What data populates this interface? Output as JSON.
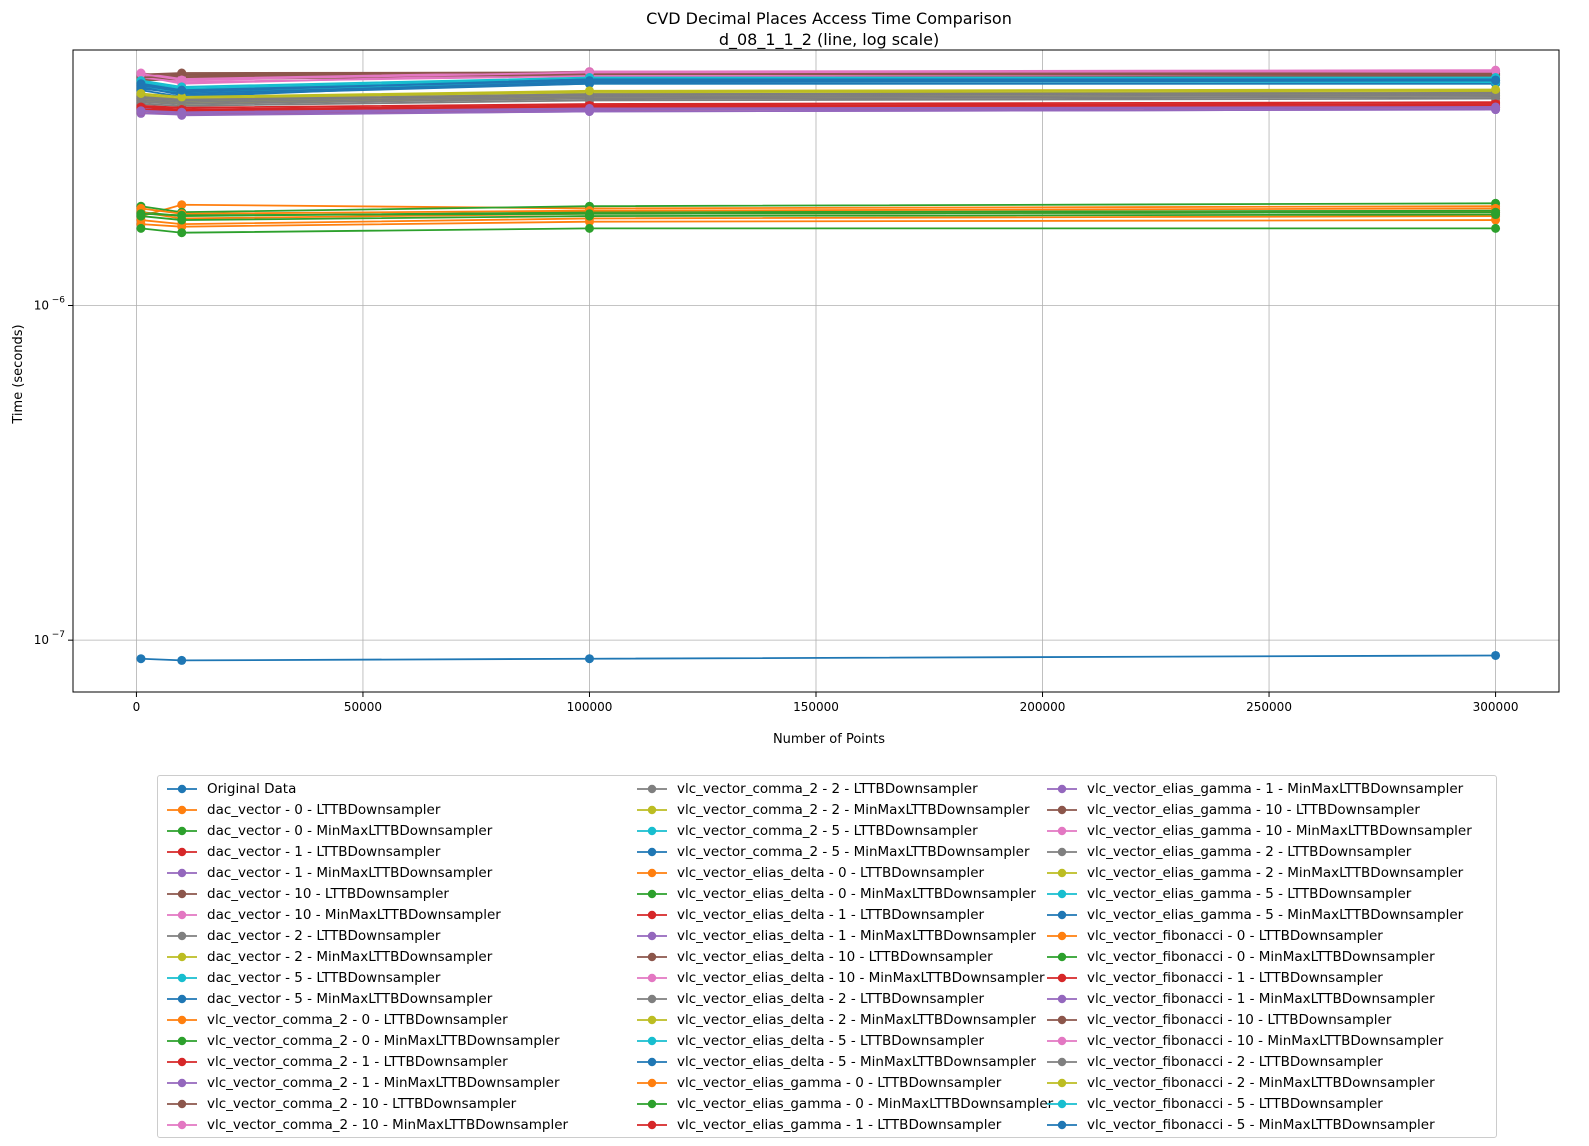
{
  "chart_data": {
    "type": "line",
    "title": "CVD Decimal Places Access Time Comparison",
    "subtitle": "d_08_1_1_2 (line, log scale)",
    "xlabel": "Number of Points",
    "ylabel": "Time (seconds)",
    "xlim": [
      -14000,
      314000
    ],
    "ylim": [
      7e-08,
      5.8e-06
    ],
    "yscale": "log",
    "grid": true,
    "legend_placement": "below",
    "x_ticks": [
      {
        "value": 0,
        "label": "0"
      },
      {
        "value": 50000,
        "label": "50000"
      },
      {
        "value": 100000,
        "label": "100000"
      },
      {
        "value": 150000,
        "label": "150000"
      },
      {
        "value": 200000,
        "label": "200000"
      },
      {
        "value": 250000,
        "label": "250000"
      },
      {
        "value": 300000,
        "label": "300000"
      }
    ],
    "y_ticks": [
      {
        "value": 1e-07,
        "base": "10",
        "exp": "−7"
      },
      {
        "value": 1e-06,
        "base": "10",
        "exp": "−6"
      }
    ],
    "x": [
      1000,
      10000,
      100000,
      300000
    ],
    "series": [
      {
        "name": "Original Data",
        "color": "#1f77b4",
        "values": [
          8.8e-08,
          8.7e-08,
          8.8e-08,
          9e-08
        ]
      },
      {
        "name": "dac_vector - 0 - LTTBDownsampler",
        "color": "#ff7f0e",
        "values": [
          1.85e-06,
          2e-06,
          1.95e-06,
          1.98e-06
        ]
      },
      {
        "name": "dac_vector - 0 - MinMaxLTTBDownsampler",
        "color": "#2ca02c",
        "values": [
          1.98e-06,
          1.9e-06,
          1.98e-06,
          2.02e-06
        ]
      },
      {
        "name": "dac_vector - 1 - LTTBDownsampler",
        "color": "#d62728",
        "values": [
          3.9e-06,
          3.8e-06,
          3.95e-06,
          4e-06
        ]
      },
      {
        "name": "dac_vector - 1 - MinMaxLTTBDownsampler",
        "color": "#9467bd",
        "values": [
          3.75e-06,
          3.72e-06,
          3.8e-06,
          3.85e-06
        ]
      },
      {
        "name": "dac_vector - 10 - LTTBDownsampler",
        "color": "#8c564b",
        "values": [
          4.85e-06,
          4.9e-06,
          4.95e-06,
          4.9e-06
        ]
      },
      {
        "name": "dac_vector - 10 - MinMaxLTTBDownsampler",
        "color": "#e377c2",
        "values": [
          4.9e-06,
          4.7e-06,
          5e-06,
          5.05e-06
        ]
      },
      {
        "name": "dac_vector - 2 - LTTBDownsampler",
        "color": "#7f7f7f",
        "values": [
          4e-06,
          3.95e-06,
          4.1e-06,
          4.15e-06
        ]
      },
      {
        "name": "dac_vector - 2 - MinMaxLTTBDownsampler",
        "color": "#bcbd22",
        "values": [
          4.1e-06,
          4e-06,
          4.2e-06,
          4.25e-06
        ]
      },
      {
        "name": "dac_vector - 5 - LTTBDownsampler",
        "color": "#17becf",
        "values": [
          4.5e-06,
          4.3e-06,
          4.6e-06,
          4.6e-06
        ]
      },
      {
        "name": "dac_vector - 5 - MinMaxLTTBDownsampler",
        "color": "#1f77b4",
        "values": [
          4.4e-06,
          4.2e-06,
          4.7e-06,
          4.65e-06
        ]
      },
      {
        "name": "vlc_vector_comma_2 - 0 - LTTBDownsampler",
        "color": "#ff7f0e",
        "values": [
          1.8e-06,
          1.75e-06,
          1.82e-06,
          1.85e-06
        ]
      },
      {
        "name": "vlc_vector_comma_2 - 0 - MinMaxLTTBDownsampler",
        "color": "#2ca02c",
        "values": [
          1.9e-06,
          1.85e-06,
          1.9e-06,
          1.92e-06
        ]
      },
      {
        "name": "vlc_vector_comma_2 - 1 - LTTBDownsampler",
        "color": "#d62728",
        "values": [
          3.95e-06,
          3.9e-06,
          4e-06,
          4.05e-06
        ]
      },
      {
        "name": "vlc_vector_comma_2 - 1 - MinMaxLTTBDownsampler",
        "color": "#9467bd",
        "values": [
          3.85e-06,
          3.8e-06,
          3.9e-06,
          3.95e-06
        ]
      },
      {
        "name": "vlc_vector_comma_2 - 10 - LTTBDownsampler",
        "color": "#8c564b",
        "values": [
          4.7e-06,
          4.75e-06,
          4.85e-06,
          4.8e-06
        ]
      },
      {
        "name": "vlc_vector_comma_2 - 10 - MinMaxLTTBDownsampler",
        "color": "#e377c2",
        "values": [
          4.85e-06,
          4.6e-06,
          4.95e-06,
          4.95e-06
        ]
      },
      {
        "name": "vlc_vector_comma_2 - 2 - LTTBDownsampler",
        "color": "#7f7f7f",
        "values": [
          4.05e-06,
          4e-06,
          4.15e-06,
          4.2e-06
        ]
      },
      {
        "name": "vlc_vector_comma_2 - 2 - MinMaxLTTBDownsampler",
        "color": "#bcbd22",
        "values": [
          4.15e-06,
          4.05e-06,
          4.25e-06,
          4.3e-06
        ]
      },
      {
        "name": "vlc_vector_comma_2 - 5 - LTTBDownsampler",
        "color": "#17becf",
        "values": [
          4.55e-06,
          4.35e-06,
          4.65e-06,
          4.7e-06
        ]
      },
      {
        "name": "vlc_vector_comma_2 - 5 - MinMaxLTTBDownsampler",
        "color": "#1f77b4",
        "values": [
          4.5e-06,
          4.25e-06,
          4.6e-06,
          4.6e-06
        ]
      },
      {
        "name": "vlc_vector_elias_delta - 0 - LTTBDownsampler",
        "color": "#ff7f0e",
        "values": [
          1.75e-06,
          1.72e-06,
          1.78e-06,
          1.8e-06
        ]
      },
      {
        "name": "vlc_vector_elias_delta - 0 - MinMaxLTTBDownsampler",
        "color": "#2ca02c",
        "values": [
          1.7e-06,
          1.65e-06,
          1.7e-06,
          1.7e-06
        ]
      },
      {
        "name": "vlc_vector_elias_delta - 1 - LTTBDownsampler",
        "color": "#d62728",
        "values": [
          3.8e-06,
          3.75e-06,
          3.85e-06,
          3.9e-06
        ]
      },
      {
        "name": "vlc_vector_elias_delta - 1 - MinMaxLTTBDownsampler",
        "color": "#9467bd",
        "values": [
          3.9e-06,
          3.7e-06,
          3.8e-06,
          3.85e-06
        ]
      },
      {
        "name": "vlc_vector_elias_delta - 10 - LTTBDownsampler",
        "color": "#8c564b",
        "values": [
          4.75e-06,
          4.8e-06,
          4.9e-06,
          4.85e-06
        ]
      },
      {
        "name": "vlc_vector_elias_delta - 10 - MinMaxLTTBDownsampler",
        "color": "#e377c2",
        "values": [
          4.8e-06,
          4.65e-06,
          4.85e-06,
          4.9e-06
        ]
      },
      {
        "name": "vlc_vector_elias_delta - 2 - LTTBDownsampler",
        "color": "#7f7f7f",
        "values": [
          4.1e-06,
          4.05e-06,
          4.2e-06,
          4.25e-06
        ]
      },
      {
        "name": "vlc_vector_elias_delta - 2 - MinMaxLTTBDownsampler",
        "color": "#bcbd22",
        "values": [
          4.2e-06,
          4.1e-06,
          4.3e-06,
          4.35e-06
        ]
      },
      {
        "name": "vlc_vector_elias_delta - 5 - LTTBDownsampler",
        "color": "#17becf",
        "values": [
          4.6e-06,
          4.4e-06,
          4.7e-06,
          4.65e-06
        ]
      },
      {
        "name": "vlc_vector_elias_delta - 5 - MinMaxLTTBDownsampler",
        "color": "#1f77b4",
        "values": [
          4.45e-06,
          4.3e-06,
          4.65e-06,
          4.7e-06
        ]
      },
      {
        "name": "vlc_vector_elias_gamma - 0 - LTTBDownsampler",
        "color": "#ff7f0e",
        "values": [
          1.9e-06,
          1.82e-06,
          1.88e-06,
          1.9e-06
        ]
      },
      {
        "name": "vlc_vector_elias_gamma - 0 - MinMaxLTTBDownsampler",
        "color": "#2ca02c",
        "values": [
          1.85e-06,
          1.8e-06,
          1.85e-06,
          1.87e-06
        ]
      },
      {
        "name": "vlc_vector_elias_gamma - 1 - LTTBDownsampler",
        "color": "#d62728",
        "values": [
          3.85e-06,
          3.82e-06,
          3.92e-06,
          3.95e-06
        ]
      },
      {
        "name": "vlc_vector_elias_gamma - 1 - MinMaxLTTBDownsampler",
        "color": "#9467bd",
        "values": [
          3.8e-06,
          3.75e-06,
          3.85e-06,
          3.9e-06
        ]
      },
      {
        "name": "vlc_vector_elias_gamma - 10 - LTTBDownsampler",
        "color": "#8c564b",
        "values": [
          4.8e-06,
          4.85e-06,
          4.92e-06,
          4.88e-06
        ]
      },
      {
        "name": "vlc_vector_elias_gamma - 10 - MinMaxLTTBDownsampler",
        "color": "#e377c2",
        "values": [
          4.95e-06,
          4.75e-06,
          5e-06,
          5e-06
        ]
      },
      {
        "name": "vlc_vector_elias_gamma - 2 - LTTBDownsampler",
        "color": "#7f7f7f",
        "values": [
          4.15e-06,
          4.1e-06,
          4.25e-06,
          4.3e-06
        ]
      },
      {
        "name": "vlc_vector_elias_gamma - 2 - MinMaxLTTBDownsampler",
        "color": "#bcbd22",
        "values": [
          4.25e-06,
          4.15e-06,
          4.35e-06,
          4.4e-06
        ]
      },
      {
        "name": "vlc_vector_elias_gamma - 5 - LTTBDownsampler",
        "color": "#17becf",
        "values": [
          4.65e-06,
          4.45e-06,
          4.75e-06,
          4.75e-06
        ]
      },
      {
        "name": "vlc_vector_elias_gamma - 5 - MinMaxLTTBDownsampler",
        "color": "#1f77b4",
        "values": [
          4.55e-06,
          4.35e-06,
          4.75e-06,
          4.75e-06
        ]
      },
      {
        "name": "vlc_vector_fibonacci - 0 - LTTBDownsampler",
        "color": "#ff7f0e",
        "values": [
          1.95e-06,
          1.88e-06,
          1.92e-06,
          1.95e-06
        ]
      },
      {
        "name": "vlc_vector_fibonacci - 0 - MinMaxLTTBDownsampler",
        "color": "#2ca02c",
        "values": [
          1.88e-06,
          1.86e-06,
          1.88e-06,
          1.9e-06
        ]
      },
      {
        "name": "vlc_vector_fibonacci - 1 - LTTBDownsampler",
        "color": "#d62728",
        "values": [
          3.92e-06,
          3.85e-06,
          3.96e-06,
          4e-06
        ]
      },
      {
        "name": "vlc_vector_fibonacci - 1 - MinMaxLTTBDownsampler",
        "color": "#9467bd",
        "values": [
          3.82e-06,
          3.78e-06,
          3.88e-06,
          3.92e-06
        ]
      },
      {
        "name": "vlc_vector_fibonacci - 10 - LTTBDownsampler",
        "color": "#8c564b",
        "values": [
          4.9e-06,
          4.95e-06,
          4.97e-06,
          4.93e-06
        ]
      },
      {
        "name": "vlc_vector_fibonacci - 10 - MinMaxLTTBDownsampler",
        "color": "#e377c2",
        "values": [
          4.92e-06,
          4.72e-06,
          4.97e-06,
          5.02e-06
        ]
      },
      {
        "name": "vlc_vector_fibonacci - 2 - LTTBDownsampler",
        "color": "#7f7f7f",
        "values": [
          4.2e-06,
          4.12e-06,
          4.28e-06,
          4.32e-06
        ]
      },
      {
        "name": "vlc_vector_fibonacci - 2 - MinMaxLTTBDownsampler",
        "color": "#bcbd22",
        "values": [
          4.3e-06,
          4.2e-06,
          4.38e-06,
          4.42e-06
        ]
      },
      {
        "name": "vlc_vector_fibonacci - 5 - LTTBDownsampler",
        "color": "#17becf",
        "values": [
          4.7e-06,
          4.5e-06,
          4.8e-06,
          4.8e-06
        ]
      },
      {
        "name": "vlc_vector_fibonacci - 5 - MinMaxLTTBDownsampler",
        "color": "#1f77b4",
        "values": [
          4.6e-06,
          4.4e-06,
          4.7e-06,
          4.72e-06
        ]
      }
    ]
  }
}
